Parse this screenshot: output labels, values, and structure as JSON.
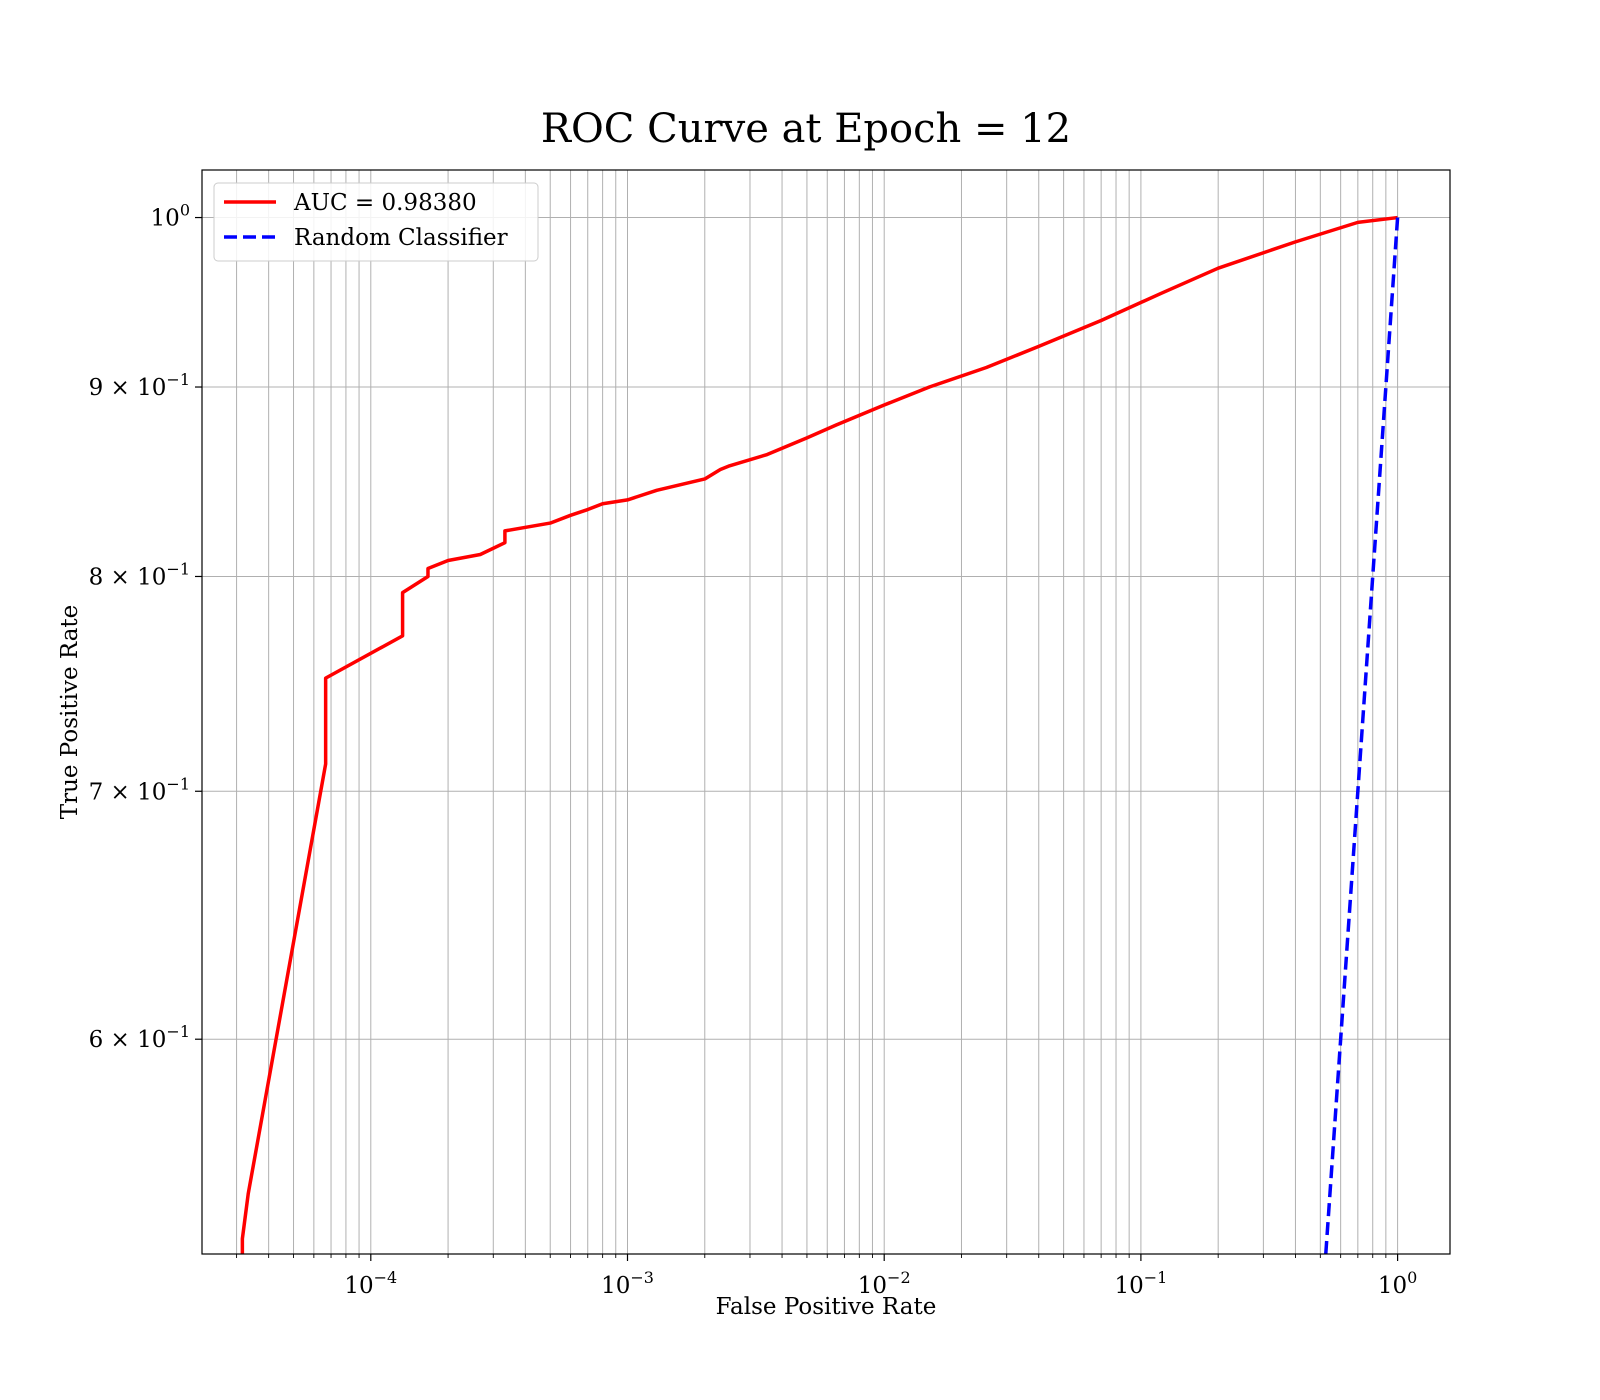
{
  "chart_data": {
    "type": "line",
    "title": "ROC Curve at Epoch = 12",
    "xlabel": "False Positive Rate",
    "ylabel": "True Positive Rate",
    "xscale": "log",
    "yscale": "log",
    "xlim": [
      2.2e-05,
      1.6
    ],
    "ylim": [
      0.525,
      1.03
    ],
    "grid": "both major and minor",
    "legend_position": "top-left",
    "x_ticks": [
      {
        "value": 0.0001,
        "base": "10",
        "exp": "−4"
      },
      {
        "value": 0.001,
        "base": "10",
        "exp": "−3"
      },
      {
        "value": 0.01,
        "base": "10",
        "exp": "−2"
      },
      {
        "value": 0.1,
        "base": "10",
        "exp": "−1"
      },
      {
        "value": 1,
        "base": "10",
        "exp": "0"
      }
    ],
    "y_ticks": [
      {
        "value": 0.6,
        "base": "6 × 10",
        "exp": "−1"
      },
      {
        "value": 0.7,
        "base": "7 × 10",
        "exp": "−1"
      },
      {
        "value": 0.8,
        "base": "8 × 10",
        "exp": "−1"
      },
      {
        "value": 0.9,
        "base": "9 × 10",
        "exp": "−1"
      },
      {
        "value": 1.0,
        "base": "10",
        "exp": "0"
      }
    ],
    "series": [
      {
        "name": "AUC = 0.98380",
        "color": "#ff0000",
        "style": "solid",
        "points": [
          [
            3.16e-05,
            0.525
          ],
          [
            3.16e-05,
            0.53
          ],
          [
            3.33e-05,
            0.545
          ],
          [
            6.67e-05,
            0.712
          ],
          [
            6.67e-05,
            0.751
          ],
          [
            0.000133,
            0.771
          ],
          [
            0.000133,
            0.792
          ],
          [
            0.000167,
            0.8
          ],
          [
            0.000167,
            0.804
          ],
          [
            0.0002,
            0.808
          ],
          [
            0.000267,
            0.811
          ],
          [
            0.000333,
            0.817
          ],
          [
            0.000333,
            0.823
          ],
          [
            0.0005,
            0.827
          ],
          [
            0.0006,
            0.831
          ],
          [
            0.0007,
            0.834
          ],
          [
            0.0008,
            0.837
          ],
          [
            0.001,
            0.839
          ],
          [
            0.0013,
            0.844
          ],
          [
            0.002,
            0.85
          ],
          [
            0.0023,
            0.855
          ],
          [
            0.0025,
            0.857
          ],
          [
            0.0035,
            0.863
          ],
          [
            0.005,
            0.872
          ],
          [
            0.0065,
            0.879
          ],
          [
            0.01,
            0.89
          ],
          [
            0.015,
            0.9
          ],
          [
            0.025,
            0.911
          ],
          [
            0.04,
            0.923
          ],
          [
            0.07,
            0.938
          ],
          [
            0.12,
            0.954
          ],
          [
            0.2,
            0.969
          ],
          [
            0.4,
            0.985
          ],
          [
            0.7,
            0.997
          ],
          [
            1.0,
            1.0
          ]
        ]
      },
      {
        "name": "Random Classifier",
        "color": "#0000ff",
        "style": "dashed",
        "points": [
          [
            0.525,
            0.525
          ],
          [
            1.0,
            1.0
          ]
        ]
      }
    ]
  }
}
